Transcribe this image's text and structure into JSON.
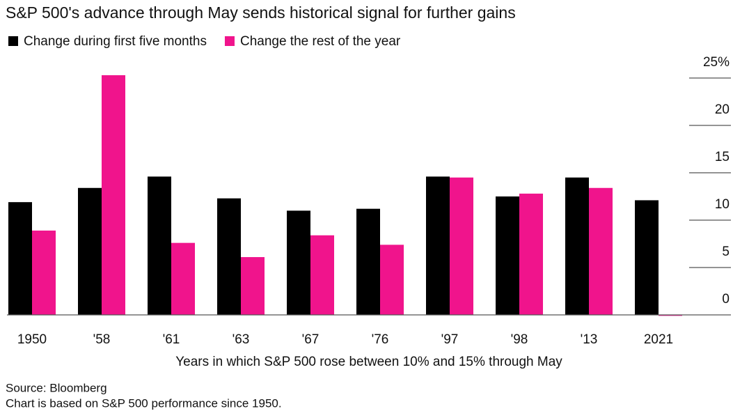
{
  "chart_data": {
    "type": "bar",
    "title": "S&P 500's advance through May sends historical signal for further gains",
    "xlabel": "Years in which S&P 500 rose between 10% and 15% through May",
    "source": "Source: Bloomberg",
    "note": "Chart is based on S&P 500 performance since 1950.",
    "categories": [
      "1950",
      "'58",
      "'61",
      "'63",
      "'67",
      "'76",
      "'97",
      "'98",
      "'13",
      "2021"
    ],
    "series": [
      {
        "name": "Change during first five months",
        "color": "#000000",
        "values": [
          11.9,
          13.4,
          14.6,
          12.3,
          11.0,
          11.2,
          14.6,
          12.5,
          14.5,
          12.1
        ]
      },
      {
        "name": "Change the rest of the year",
        "color": "#f0148c",
        "values": [
          8.9,
          25.3,
          7.6,
          6.1,
          8.4,
          7.4,
          14.5,
          12.8,
          13.4,
          -0.1
        ]
      }
    ],
    "ylim": [
      -0.5,
      27
    ],
    "yticks": [
      0,
      5,
      10,
      15,
      20,
      {
        "value": 25,
        "label": "25%"
      }
    ],
    "legend": "top-left"
  }
}
